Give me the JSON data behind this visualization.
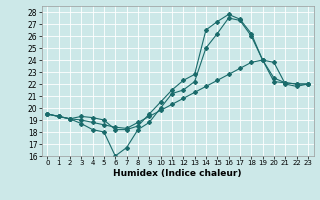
{
  "xlabel": "Humidex (Indice chaleur)",
  "background_color": "#cce8e8",
  "line_color": "#1a6b6b",
  "ylim": [
    16,
    28.5
  ],
  "xlim": [
    -0.5,
    23.5
  ],
  "yticks": [
    16,
    17,
    18,
    19,
    20,
    21,
    22,
    23,
    24,
    25,
    26,
    27,
    28
  ],
  "xticks": [
    0,
    1,
    2,
    3,
    4,
    5,
    6,
    7,
    8,
    9,
    10,
    11,
    12,
    13,
    14,
    15,
    16,
    17,
    18,
    19,
    20,
    21,
    22,
    23
  ],
  "lines": [
    {
      "x": [
        0,
        1,
        2,
        3,
        4,
        5,
        6,
        7,
        8,
        9,
        10,
        11,
        12,
        13,
        14,
        15,
        16,
        17,
        18,
        19,
        20,
        21,
        22,
        23
      ],
      "y": [
        19.5,
        19.3,
        19.1,
        19.3,
        19.2,
        19.0,
        18.2,
        18.2,
        18.5,
        19.5,
        20.5,
        21.5,
        22.3,
        22.8,
        26.5,
        27.2,
        27.8,
        27.4,
        26.2,
        24.0,
        22.2,
        22.1,
        22.0,
        22.0
      ]
    },
    {
      "x": [
        0,
        1,
        2,
        3,
        4,
        5,
        6,
        7,
        8,
        9,
        10,
        11,
        12,
        13,
        14,
        15,
        16,
        17,
        18,
        19,
        20,
        21,
        22,
        23
      ],
      "y": [
        19.5,
        19.3,
        19.1,
        18.7,
        18.2,
        18.0,
        16.0,
        16.7,
        18.2,
        18.8,
        20.0,
        21.2,
        21.5,
        22.2,
        25.0,
        26.2,
        27.5,
        27.3,
        26.0,
        24.0,
        22.5,
        22.1,
        22.0,
        22.0
      ]
    },
    {
      "x": [
        0,
        1,
        2,
        3,
        4,
        5,
        6,
        7,
        8,
        9,
        10,
        11,
        12,
        13,
        14,
        15,
        16,
        17,
        18,
        19,
        20,
        21,
        22,
        23
      ],
      "y": [
        19.5,
        19.3,
        19.1,
        19.0,
        18.8,
        18.6,
        18.4,
        18.3,
        18.8,
        19.3,
        19.8,
        20.3,
        20.8,
        21.3,
        21.8,
        22.3,
        22.8,
        23.3,
        23.8,
        24.0,
        23.8,
        22.0,
        21.8,
        22.0
      ]
    }
  ]
}
